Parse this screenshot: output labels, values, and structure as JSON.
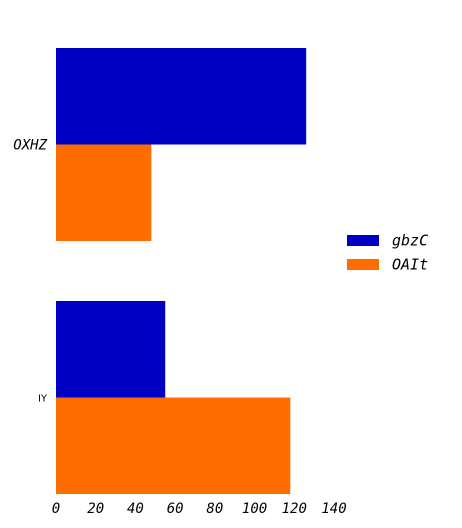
{
  "chart_data": {
    "type": "bar",
    "orientation": "horizontal",
    "categories": [
      "OXHZ",
      "IY"
    ],
    "series": [
      {
        "name": "gbzC",
        "color": "#0000c4",
        "values": [
          126,
          55
        ]
      },
      {
        "name": "OAIt",
        "color": "#ff6d00",
        "values": [
          48,
          118
        ]
      }
    ],
    "xlim": [
      0,
      140
    ],
    "xticks": [
      0,
      20,
      40,
      60,
      80,
      100,
      120,
      140
    ],
    "grid": false,
    "legend_position": "right"
  }
}
